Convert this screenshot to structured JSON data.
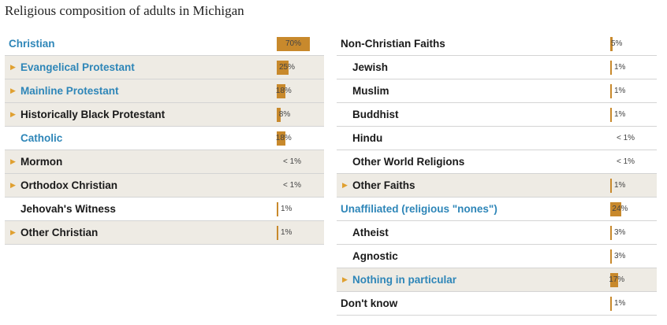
{
  "chart_data": {
    "type": "bar",
    "title": "Religious composition of adults in Michigan",
    "colors": {
      "bar": "#c8892c",
      "label_blue": "#2e86b8",
      "arrow": "#e0a030",
      "row_shade": "#eeebe4"
    },
    "columns": [
      {
        "rows": [
          {
            "label": "Christian",
            "value": 70,
            "display": "70%",
            "style": "blue",
            "level": 0,
            "expandable": false,
            "shaded": false
          },
          {
            "label": "Evangelical Protestant",
            "value": 25,
            "display": "25%",
            "style": "blue",
            "level": 1,
            "expandable": true,
            "shaded": true
          },
          {
            "label": "Mainline Protestant",
            "value": 18,
            "display": "18%",
            "style": "blue",
            "level": 1,
            "expandable": true,
            "shaded": true
          },
          {
            "label": "Historically Black Protestant",
            "value": 8,
            "display": "8%",
            "style": "dark",
            "level": 1,
            "expandable": true,
            "shaded": true
          },
          {
            "label": "Catholic",
            "value": 18,
            "display": "18%",
            "style": "blue",
            "level": 1,
            "expandable": false,
            "shaded": false
          },
          {
            "label": "Mormon",
            "value": 0.4,
            "display": "< 1%",
            "style": "dark",
            "level": 1,
            "expandable": true,
            "shaded": true
          },
          {
            "label": "Orthodox Christian",
            "value": 0.4,
            "display": "< 1%",
            "style": "dark",
            "level": 1,
            "expandable": true,
            "shaded": true
          },
          {
            "label": "Jehovah's Witness",
            "value": 1,
            "display": "1%",
            "style": "dark",
            "level": 1,
            "expandable": false,
            "shaded": false
          },
          {
            "label": "Other Christian",
            "value": 1,
            "display": "1%",
            "style": "dark",
            "level": 1,
            "expandable": true,
            "shaded": true
          }
        ]
      },
      {
        "rows": [
          {
            "label": "Non-Christian Faiths",
            "value": 5,
            "display": "5%",
            "style": "dark",
            "level": 0,
            "expandable": false,
            "shaded": false
          },
          {
            "label": "Jewish",
            "value": 1,
            "display": "1%",
            "style": "dark",
            "level": 1,
            "expandable": false,
            "shaded": false
          },
          {
            "label": "Muslim",
            "value": 1,
            "display": "1%",
            "style": "dark",
            "level": 1,
            "expandable": false,
            "shaded": false
          },
          {
            "label": "Buddhist",
            "value": 1,
            "display": "1%",
            "style": "dark",
            "level": 1,
            "expandable": false,
            "shaded": false
          },
          {
            "label": "Hindu",
            "value": 0.4,
            "display": "< 1%",
            "style": "dark",
            "level": 1,
            "expandable": false,
            "shaded": false
          },
          {
            "label": "Other World Religions",
            "value": 0.4,
            "display": "< 1%",
            "style": "dark",
            "level": 1,
            "expandable": false,
            "shaded": false
          },
          {
            "label": "Other Faiths",
            "value": 1,
            "display": "1%",
            "style": "dark",
            "level": 1,
            "expandable": true,
            "shaded": true
          },
          {
            "label": "Unaffiliated (religious \"nones\")",
            "value": 24,
            "display": "24%",
            "style": "blue",
            "level": 0,
            "expandable": false,
            "shaded": false
          },
          {
            "label": "Atheist",
            "value": 3,
            "display": "3%",
            "style": "dark",
            "level": 1,
            "expandable": false,
            "shaded": false
          },
          {
            "label": "Agnostic",
            "value": 3,
            "display": "3%",
            "style": "dark",
            "level": 1,
            "expandable": false,
            "shaded": false
          },
          {
            "label": "Nothing in particular",
            "value": 17,
            "display": "17%",
            "style": "blue",
            "level": 1,
            "expandable": true,
            "shaded": true
          },
          {
            "label": "Don't know",
            "value": 1,
            "display": "1%",
            "style": "dark",
            "level": 0,
            "expandable": false,
            "shaded": false
          }
        ]
      }
    ]
  }
}
